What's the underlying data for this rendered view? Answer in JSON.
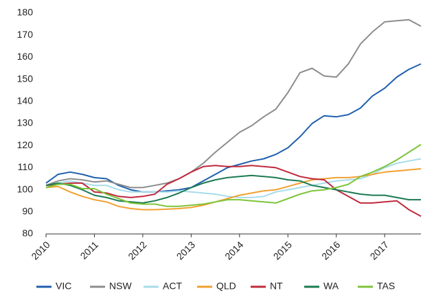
{
  "chart_data": {
    "type": "line",
    "x": [
      2010,
      2010.25,
      2010.5,
      2010.75,
      2011,
      2011.25,
      2011.5,
      2011.75,
      2012,
      2012.25,
      2012.5,
      2012.75,
      2013,
      2013.25,
      2013.5,
      2013.75,
      2014,
      2014.25,
      2014.5,
      2014.75,
      2015,
      2015.25,
      2015.5,
      2015.75,
      2016,
      2016.25,
      2016.5,
      2016.75,
      2017,
      2017.25,
      2017.5,
      2017.75
    ],
    "xlim": [
      2010,
      2017.75
    ],
    "xticks": [
      2010,
      2011,
      2012,
      2013,
      2014,
      2015,
      2016,
      2017
    ],
    "ylim": [
      80,
      180
    ],
    "yticks": [
      80,
      90,
      100,
      110,
      120,
      130,
      140,
      150,
      160,
      170,
      180
    ],
    "grid": false,
    "legend": "bottom",
    "series": [
      {
        "name": "VIC",
        "color": "#1f5fae",
        "values": [
          103,
          107,
          108,
          107,
          105.5,
          105,
          102,
          100,
          99,
          99,
          99.5,
          100,
          101,
          104,
          107,
          110,
          111.5,
          113,
          114,
          116,
          119,
          124,
          130,
          133.5,
          133,
          134,
          137,
          142.5,
          146,
          151,
          154.5,
          157
        ]
      },
      {
        "name": "NSW",
        "color": "#8c8c8c",
        "values": [
          102,
          104,
          105,
          104.5,
          103.5,
          104,
          102.5,
          101,
          101,
          102,
          103,
          105,
          108,
          112,
          117,
          121.5,
          126,
          129,
          133,
          136.5,
          144,
          153,
          155,
          151.5,
          151,
          157,
          166,
          171.5,
          176,
          176.5,
          177,
          174
        ]
      },
      {
        "name": "ACT",
        "color": "#a6dcea",
        "values": [
          101,
          103,
          104,
          103,
          102,
          102,
          100,
          99,
          99,
          99,
          99,
          99.5,
          99,
          98.5,
          98,
          97,
          96.5,
          96.5,
          97,
          99,
          100,
          101,
          102,
          103,
          104,
          104.5,
          105,
          107,
          110,
          112,
          113,
          114
        ]
      },
      {
        "name": "QLD",
        "color": "#f0a030",
        "values": [
          101,
          101.5,
          99,
          97,
          95.5,
          94.5,
          92.5,
          91.5,
          91,
          91,
          91.2,
          91.5,
          92,
          93,
          94.5,
          96,
          97.5,
          98.5,
          99.5,
          100,
          101.5,
          103,
          104.5,
          105,
          105.5,
          105.5,
          106,
          107,
          108,
          108.5,
          109,
          109.5
        ]
      },
      {
        "name": "NT",
        "color": "#c0283c",
        "values": [
          102,
          102.5,
          103,
          103,
          99,
          98.5,
          97,
          96.5,
          97,
          98,
          102.5,
          105,
          108,
          110.5,
          111,
          110.5,
          110.5,
          111,
          110.5,
          110,
          108,
          106,
          105,
          104.5,
          100,
          97,
          94,
          94,
          94.5,
          95,
          91,
          88
        ]
      },
      {
        "name": "WA",
        "color": "#1a7a50",
        "values": [
          102,
          103,
          102,
          100,
          97.5,
          96.5,
          95,
          94.5,
          94,
          95,
          96.5,
          98.5,
          101,
          103,
          104.5,
          105.5,
          106,
          106.5,
          106,
          105.5,
          104.5,
          104,
          102,
          101,
          100,
          99,
          98,
          97.5,
          97.5,
          96.5,
          95.5,
          95.5
        ]
      },
      {
        "name": "TAS",
        "color": "#7cc43a",
        "values": [
          101,
          102.5,
          102.5,
          100.5,
          100.5,
          98,
          96,
          94,
          93.5,
          93.5,
          92.5,
          92.5,
          93,
          93.5,
          94.5,
          95.5,
          95.5,
          95,
          94.5,
          94,
          96,
          98,
          99.5,
          100,
          101,
          102.5,
          106,
          108,
          110.5,
          113.5,
          117,
          120.5
        ]
      }
    ]
  }
}
